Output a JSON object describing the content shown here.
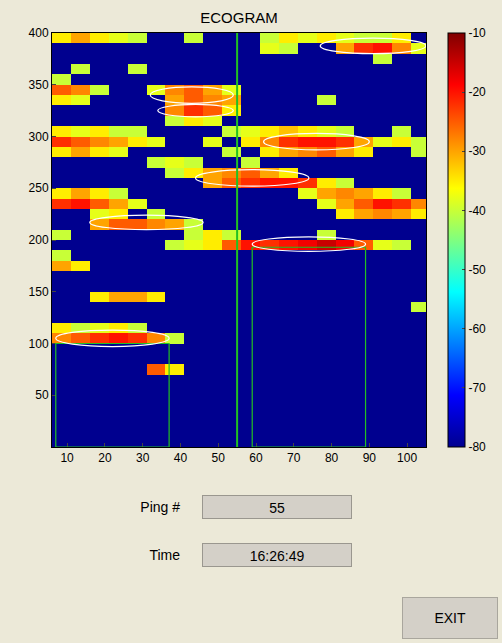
{
  "chart_data": {
    "type": "heatmap",
    "title": "ECOGRAM",
    "x": [
      8.5,
      13.5,
      18.5,
      23.5,
      28.5,
      33.5,
      38.5,
      43.5,
      48.5,
      53.5,
      58.5,
      63.5,
      68.5,
      73.5,
      78.5,
      83.5,
      88.5,
      93.5,
      98.5,
      103.5
    ],
    "y": [
      5,
      15,
      25,
      35,
      45,
      55,
      65,
      75,
      85,
      95,
      105,
      115,
      125,
      135,
      145,
      155,
      165,
      175,
      185,
      195,
      205,
      215,
      225,
      235,
      245,
      255,
      265,
      275,
      285,
      295,
      305,
      315,
      325,
      335,
      345,
      355,
      365,
      375,
      385,
      395
    ],
    "cells": [
      [
        -80,
        -80,
        -80,
        -80,
        -80,
        -80,
        -80,
        -80,
        -80,
        -80,
        -80,
        -80,
        -80,
        -80,
        -80,
        -80,
        -80,
        -80,
        -80,
        -80
      ],
      [
        -80,
        -80,
        -80,
        -80,
        -80,
        -80,
        -80,
        -80,
        -80,
        -80,
        -80,
        -80,
        -80,
        -80,
        -80,
        -80,
        -80,
        -80,
        -80,
        -80
      ],
      [
        -80,
        -80,
        -80,
        -80,
        -80,
        -80,
        -80,
        -80,
        -80,
        -80,
        -80,
        -80,
        -80,
        -80,
        -80,
        -80,
        -80,
        -80,
        -80,
        -80
      ],
      [
        -80,
        -80,
        -80,
        -80,
        -80,
        -80,
        -80,
        -80,
        -80,
        -80,
        -80,
        -80,
        -80,
        -80,
        -80,
        -80,
        -80,
        -80,
        -80,
        -80
      ],
      [
        -80,
        -80,
        -80,
        -80,
        -80,
        -80,
        -80,
        -80,
        -80,
        -80,
        -80,
        -80,
        -80,
        -80,
        -80,
        -80,
        -80,
        -80,
        -80,
        -80
      ],
      [
        -80,
        -80,
        -80,
        -80,
        -80,
        -80,
        -80,
        -80,
        -80,
        -80,
        -80,
        -80,
        -80,
        -80,
        -80,
        -80,
        -80,
        -80,
        -80,
        -80
      ],
      [
        -80,
        -80,
        -80,
        -80,
        -80,
        -80,
        -80,
        -80,
        -80,
        -80,
        -80,
        -80,
        -80,
        -80,
        -80,
        -80,
        -80,
        -80,
        -80,
        -80
      ],
      [
        -80,
        -80,
        -80,
        -80,
        -80,
        -25,
        -35,
        -80,
        -80,
        -80,
        -80,
        -80,
        -80,
        -80,
        -80,
        -80,
        -80,
        -80,
        -80,
        -80
      ],
      [
        -80,
        -80,
        -80,
        -80,
        -80,
        -80,
        -80,
        -80,
        -80,
        -80,
        -80,
        -80,
        -80,
        -80,
        -80,
        -80,
        -80,
        -80,
        -80,
        -80
      ],
      [
        -80,
        -80,
        -80,
        -80,
        -80,
        -80,
        -80,
        -80,
        -80,
        -80,
        -80,
        -80,
        -80,
        -80,
        -80,
        -80,
        -80,
        -80,
        -80,
        -80
      ],
      [
        -28,
        -25,
        -22,
        -20,
        -22,
        -28,
        -40,
        -80,
        -80,
        -80,
        -80,
        -80,
        -80,
        -80,
        -80,
        -80,
        -80,
        -80,
        -80,
        -80
      ],
      [
        -35,
        -40,
        -38,
        -35,
        -40,
        -80,
        -80,
        -80,
        -80,
        -80,
        -80,
        -80,
        -80,
        -80,
        -80,
        -80,
        -80,
        -80,
        -80,
        -80
      ],
      [
        -80,
        -80,
        -80,
        -80,
        -80,
        -80,
        -80,
        -80,
        -80,
        -80,
        -80,
        -80,
        -80,
        -80,
        -80,
        -80,
        -80,
        -80,
        -80,
        -80
      ],
      [
        -80,
        -80,
        -80,
        -80,
        -80,
        -80,
        -80,
        -80,
        -80,
        -80,
        -80,
        -80,
        -80,
        -80,
        -80,
        -80,
        -80,
        -80,
        -80,
        -40
      ],
      [
        -80,
        -80,
        -35,
        -30,
        -30,
        -35,
        -80,
        -80,
        -80,
        -80,
        -80,
        -80,
        -80,
        -80,
        -80,
        -80,
        -80,
        -80,
        -80,
        -80
      ],
      [
        -80,
        -80,
        -80,
        -80,
        -80,
        -80,
        -80,
        -80,
        -80,
        -80,
        -80,
        -80,
        -80,
        -80,
        -80,
        -80,
        -80,
        -80,
        -80,
        -80
      ],
      [
        -80,
        -80,
        -80,
        -80,
        -80,
        -80,
        -80,
        -80,
        -80,
        -80,
        -80,
        -80,
        -80,
        -80,
        -80,
        -80,
        -80,
        -80,
        -80,
        -80
      ],
      [
        -30,
        -35,
        -80,
        -80,
        -80,
        -80,
        -80,
        -80,
        -80,
        -80,
        -80,
        -80,
        -80,
        -80,
        -80,
        -80,
        -80,
        -80,
        -80,
        -80
      ],
      [
        -40,
        -80,
        -80,
        -80,
        -80,
        -80,
        -80,
        -80,
        -80,
        -80,
        -80,
        -80,
        -80,
        -80,
        -80,
        -80,
        -80,
        -80,
        -80,
        -80
      ],
      [
        -80,
        -80,
        -80,
        -80,
        -80,
        -80,
        -40,
        -38,
        -35,
        -25,
        -20,
        -22,
        -20,
        -18,
        -15,
        -18,
        -25,
        -38,
        -40,
        -80
      ],
      [
        -40,
        -80,
        -80,
        -80,
        -80,
        -80,
        -80,
        -40,
        -35,
        -40,
        -80,
        -80,
        -80,
        -80,
        -40,
        -80,
        -80,
        -80,
        -80,
        -80
      ],
      [
        -80,
        -80,
        -30,
        -25,
        -25,
        -28,
        -30,
        -40,
        -80,
        -80,
        -80,
        -80,
        -80,
        -80,
        -80,
        -80,
        -80,
        -80,
        -80,
        -80
      ],
      [
        -80,
        -80,
        -38,
        -35,
        -80,
        -40,
        -80,
        -80,
        -80,
        -80,
        -80,
        -80,
        -80,
        -80,
        -80,
        -35,
        -30,
        -28,
        -30,
        -35
      ],
      [
        -22,
        -20,
        -25,
        -30,
        -38,
        -80,
        -80,
        -80,
        -80,
        -80,
        -80,
        -80,
        -80,
        -80,
        -38,
        -30,
        -25,
        -20,
        -22,
        -28
      ],
      [
        -35,
        -30,
        -35,
        -40,
        -80,
        -80,
        -80,
        -80,
        -80,
        -80,
        -80,
        -80,
        -80,
        -38,
        -30,
        -28,
        -30,
        -35,
        -40,
        -80
      ],
      [
        -80,
        -80,
        -80,
        -80,
        -80,
        -80,
        -80,
        -80,
        -30,
        -25,
        -22,
        -20,
        -20,
        -22,
        -35,
        -40,
        -80,
        -80,
        -80,
        -80
      ],
      [
        -80,
        -80,
        -80,
        -80,
        -80,
        -80,
        -40,
        -35,
        -30,
        -28,
        -25,
        -30,
        -35,
        -80,
        -80,
        -80,
        -80,
        -80,
        -80,
        -80
      ],
      [
        -80,
        -80,
        -80,
        -80,
        -80,
        -40,
        -38,
        -40,
        -80,
        -80,
        -40,
        -80,
        -80,
        -80,
        -80,
        -80,
        -80,
        -80,
        -80,
        -80
      ],
      [
        -35,
        -30,
        -35,
        -38,
        -80,
        -80,
        -80,
        -80,
        -80,
        -40,
        -80,
        -35,
        -30,
        -28,
        -25,
        -30,
        -35,
        -80,
        -80,
        -40
      ],
      [
        -22,
        -25,
        -28,
        -30,
        -35,
        -38,
        -80,
        -80,
        -38,
        -80,
        -35,
        -28,
        -22,
        -20,
        -20,
        -22,
        -30,
        -38,
        -35,
        -40
      ],
      [
        -35,
        -38,
        -35,
        -40,
        -40,
        -80,
        -80,
        -80,
        -80,
        -40,
        -38,
        -35,
        -32,
        -35,
        -38,
        -40,
        -80,
        -80,
        -40,
        -80
      ],
      [
        -80,
        -80,
        -80,
        -80,
        -80,
        -80,
        -40,
        -35,
        -38,
        -80,
        -80,
        -80,
        -80,
        -80,
        -80,
        -80,
        -80,
        -80,
        -80,
        -80
      ],
      [
        -80,
        -80,
        -80,
        -80,
        -80,
        -80,
        -28,
        -22,
        -25,
        -35,
        -80,
        -80,
        -80,
        -80,
        -80,
        -80,
        -80,
        -80,
        -80,
        -80
      ],
      [
        -35,
        -38,
        -80,
        -80,
        -80,
        -80,
        -30,
        -25,
        -28,
        -30,
        -80,
        -80,
        -80,
        -80,
        -40,
        -80,
        -80,
        -80,
        -80,
        -80
      ],
      [
        -25,
        -28,
        -40,
        -80,
        -80,
        -38,
        -28,
        -25,
        -30,
        -38,
        -80,
        -80,
        -80,
        -80,
        -80,
        -80,
        -80,
        -80,
        -80,
        -80
      ],
      [
        -40,
        -80,
        -80,
        -80,
        -80,
        -80,
        -80,
        -80,
        -80,
        -80,
        -80,
        -80,
        -80,
        -80,
        -80,
        -80,
        -80,
        -80,
        -80,
        -80
      ],
      [
        -80,
        -40,
        -80,
        -80,
        -40,
        -80,
        -80,
        -80,
        -80,
        -80,
        -80,
        -80,
        -80,
        -80,
        -80,
        -80,
        -80,
        -80,
        -80,
        -80
      ],
      [
        -80,
        -80,
        -80,
        -80,
        -80,
        -80,
        -80,
        -80,
        -80,
        -80,
        -80,
        -80,
        -80,
        -80,
        -80,
        -80,
        -80,
        -40,
        -80,
        -80
      ],
      [
        -80,
        -80,
        -80,
        -80,
        -80,
        -80,
        -80,
        -80,
        -80,
        -80,
        -80,
        -38,
        -40,
        -80,
        -80,
        -30,
        -22,
        -20,
        -28,
        -38
      ],
      [
        -35,
        -30,
        -35,
        -38,
        -40,
        -80,
        -80,
        -40,
        -80,
        -80,
        -80,
        -40,
        -35,
        -38,
        -35,
        -38,
        -40,
        -40,
        -35,
        -80
      ]
    ],
    "xlim": [
      6,
      105
    ],
    "xticks": [
      10,
      20,
      30,
      40,
      50,
      60,
      70,
      80,
      90,
      100
    ],
    "ylim": [
      0,
      400
    ],
    "yticks": [
      50,
      100,
      150,
      200,
      250,
      300,
      350,
      400
    ],
    "color_range": [
      -80,
      -10
    ],
    "color_ticks": [
      -10,
      -20,
      -30,
      -40,
      -50,
      -60,
      -70,
      -80
    ],
    "ping_line": 55,
    "boxes": [
      [
        7,
        37,
        0,
        100
      ],
      [
        59,
        89,
        0,
        193
      ]
    ],
    "schools": [
      [
        7,
        37,
        97,
        113
      ],
      [
        16,
        46,
        210,
        224
      ],
      [
        59,
        89,
        189,
        203
      ],
      [
        44,
        74,
        252,
        268
      ],
      [
        62,
        90,
        287,
        303
      ],
      [
        32,
        54,
        332,
        348
      ],
      [
        34,
        54,
        319,
        331
      ],
      [
        77,
        105,
        380,
        395
      ]
    ]
  },
  "panel": {
    "fields": [
      {
        "label": "Ping #",
        "value": 55
      },
      {
        "label": "Time",
        "value": "16:26:49"
      }
    ],
    "button": "EXIT"
  }
}
